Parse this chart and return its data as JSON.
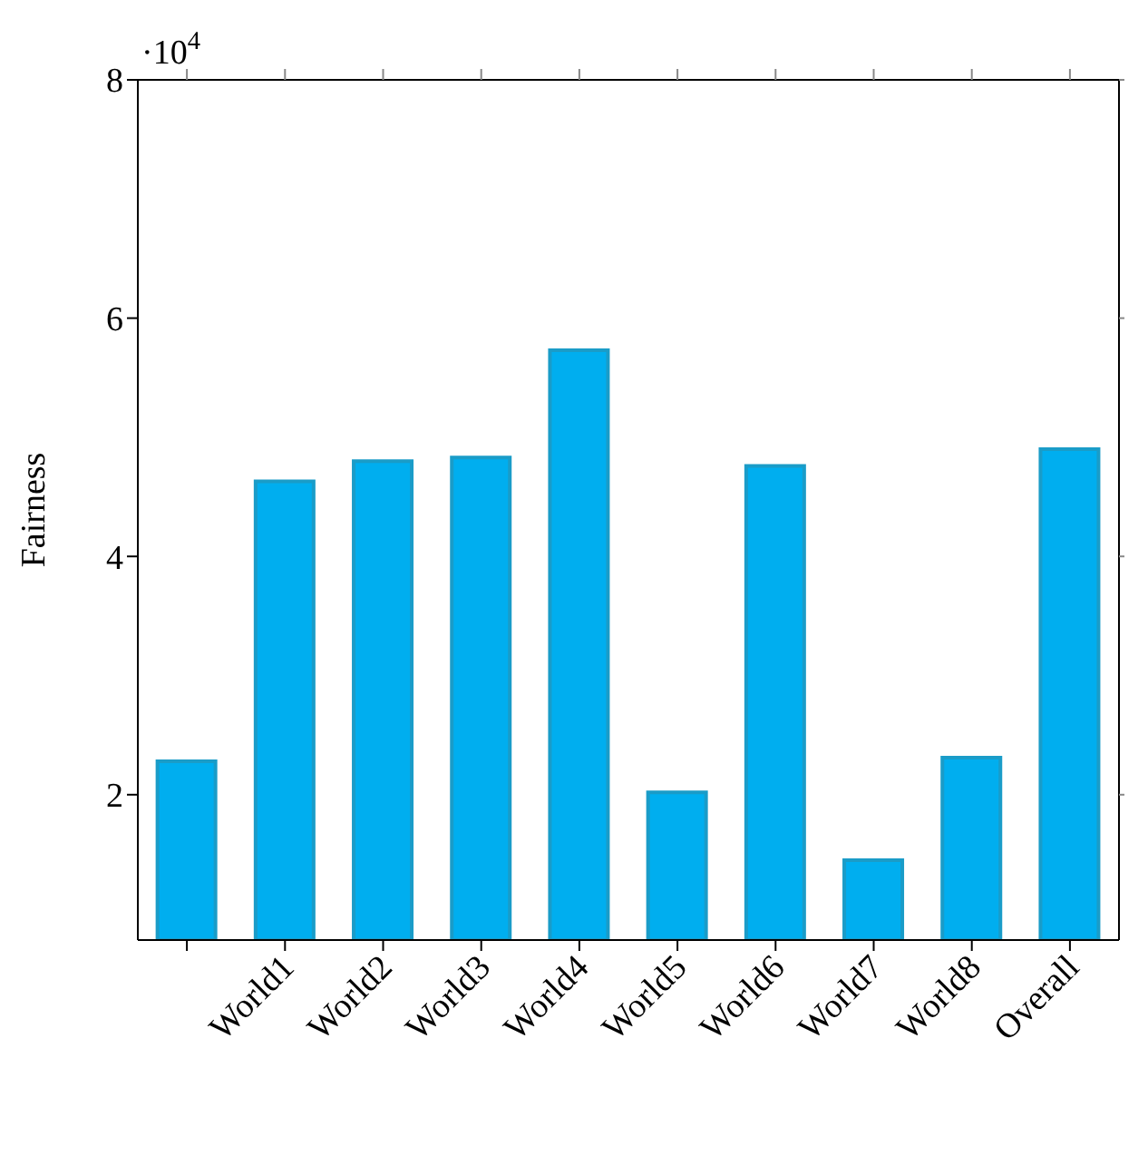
{
  "chart_data": {
    "type": "bar",
    "ylabel": "Fairness",
    "annotations": [
      "·10$^{4}$"
    ],
    "categories": [
      null,
      "World1",
      "World2",
      "World3",
      "World4",
      "World5",
      "World6",
      "World7",
      "World8",
      "Overall"
    ],
    "values": [
      2.28,
      4.63,
      4.8,
      4.83,
      5.73,
      2.02,
      4.76,
      1.45,
      2.31,
      4.9
    ],
    "color": "#00aeef",
    "ylim": [
      0.78,
      8
    ],
    "yticks": [
      2,
      4,
      6,
      8
    ]
  }
}
